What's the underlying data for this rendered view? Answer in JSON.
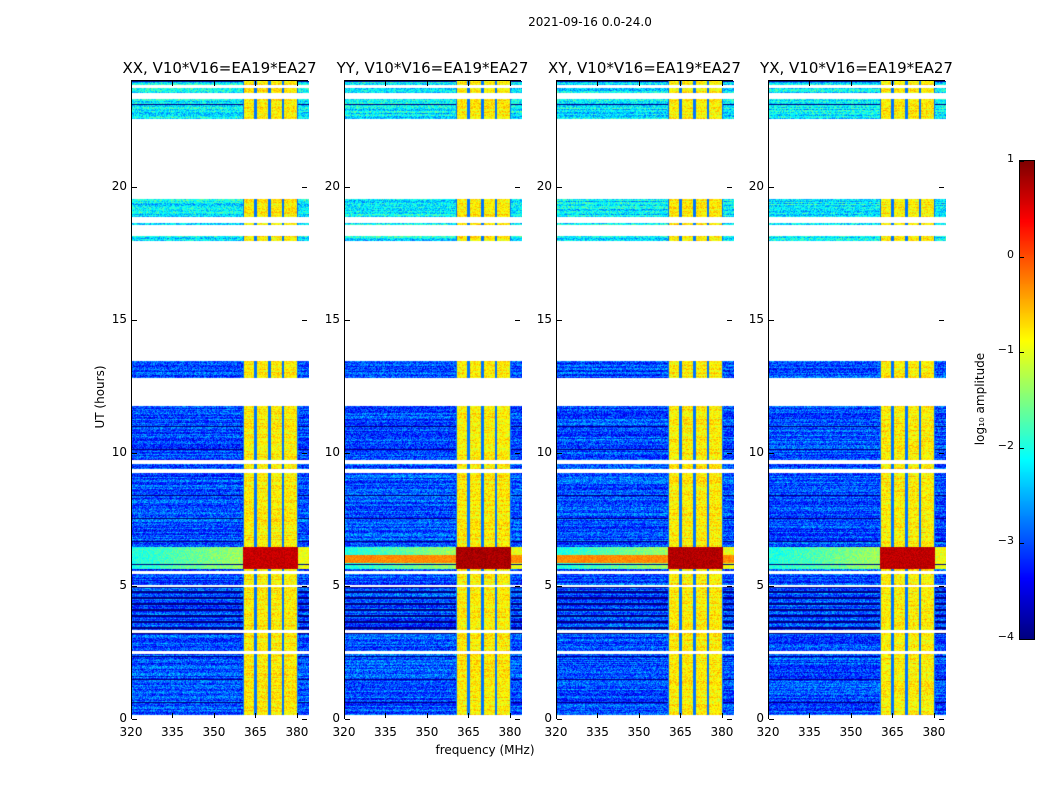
{
  "chart_data": {
    "type": "heatmap",
    "title": "2021-09-16 0.0-24.0",
    "panels": [
      {
        "title": "XX, V10*V16=EA19*EA27",
        "flare_strength": 0.7,
        "extra_band": false
      },
      {
        "title": "YY, V10*V16=EA19*EA27",
        "flare_strength": 1.0,
        "extra_band": true
      },
      {
        "title": "XY, V10*V16=EA19*EA27",
        "flare_strength": 0.9,
        "extra_band": true
      },
      {
        "title": "YX, V10*V16=EA19*EA27",
        "flare_strength": 0.8,
        "extra_band": false
      }
    ],
    "xlabel": "frequency (MHz)",
    "ylabel": "UT (hours)",
    "xlim": [
      320,
      384
    ],
    "ylim": [
      0,
      24
    ],
    "xticks": [
      "320",
      "335",
      "350",
      "365",
      "380"
    ],
    "xtick_values": [
      320,
      335,
      350,
      365,
      380
    ],
    "yticks": [
      "0",
      "5",
      "10",
      "15",
      "20"
    ],
    "ytick_values": [
      0,
      5,
      10,
      15,
      20
    ],
    "data_segments_hours": [
      [
        0.2,
        2.5
      ],
      [
        2.6,
        3.3
      ],
      [
        3.4,
        5.0
      ],
      [
        5.1,
        5.5
      ],
      [
        5.6,
        9.3
      ],
      [
        9.45,
        9.65
      ],
      [
        9.8,
        11.8
      ],
      [
        12.85,
        13.5
      ],
      [
        18.0,
        18.2
      ],
      [
        18.6,
        18.7
      ],
      [
        18.9,
        19.6
      ],
      [
        22.6,
        23.35
      ],
      [
        23.55,
        23.75
      ],
      [
        23.85,
        24.0
      ]
    ],
    "signal_band_mhz": [
      360,
      380
    ],
    "subband_edges_mhz": [
      360,
      364.5,
      369.5,
      374.5,
      380
    ],
    "flare_hours": [
      5.7,
      6.5
    ],
    "background_level": -3.0,
    "band_level": -0.8,
    "colormap": "jet",
    "colorbar": {
      "label": "log₁₀ amplitude",
      "ticks": [
        "1",
        "0",
        "−1",
        "−2",
        "−3",
        "−4"
      ],
      "tick_values": [
        1,
        0,
        -1,
        -2,
        -3,
        -4
      ],
      "range": [
        -4,
        1
      ]
    }
  }
}
